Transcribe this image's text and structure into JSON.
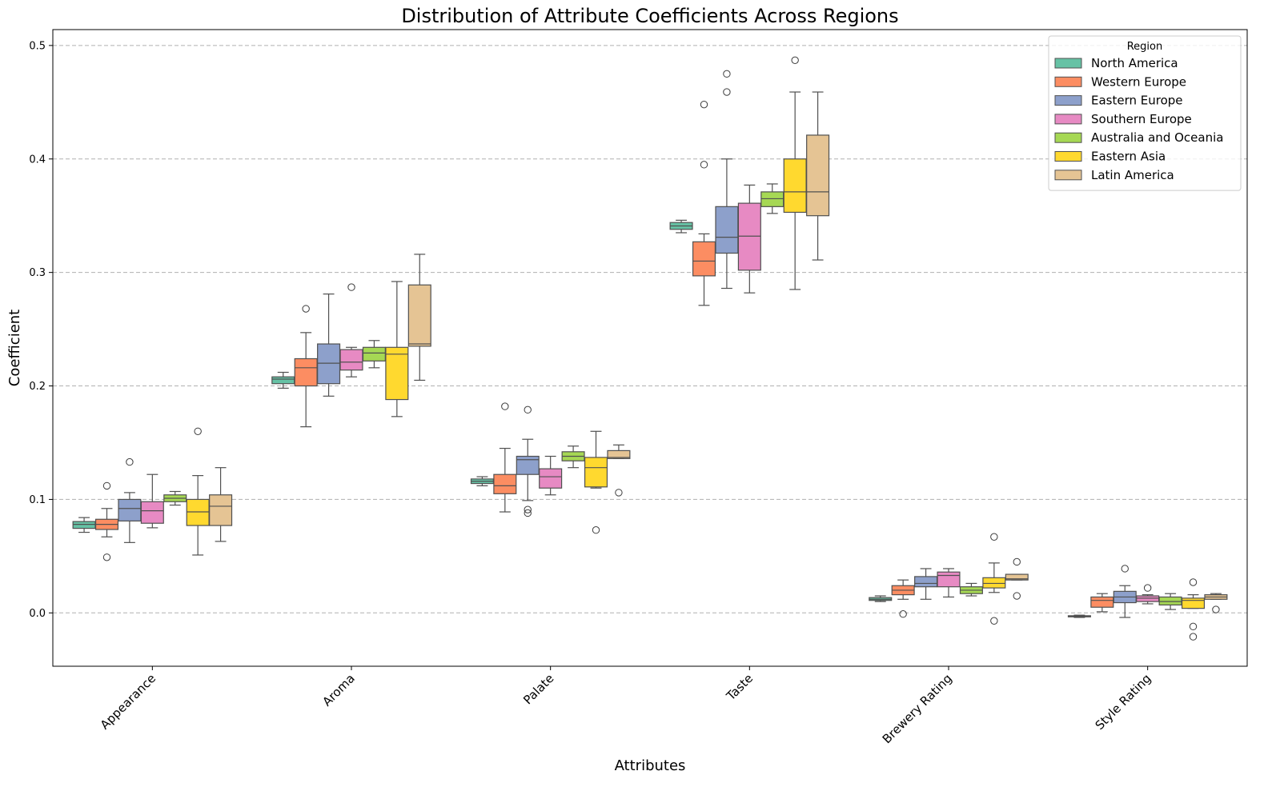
{
  "chart_data": {
    "type": "box",
    "title": "Distribution of Attribute Coefficients Across Regions",
    "xlabel": "Attributes",
    "ylabel": "Coefficient",
    "ylim": [
      -0.047,
      0.514
    ],
    "yticks": [
      0.0,
      0.1,
      0.2,
      0.3,
      0.4,
      0.5
    ],
    "ytick_labels": [
      "0.0",
      "0.1",
      "0.2",
      "0.3",
      "0.4",
      "0.5"
    ],
    "grid": "y-dashed",
    "legend": {
      "title": "Region",
      "placement": "top-right"
    },
    "categories": [
      "Appearance",
      "Aroma",
      "Palate",
      "Taste",
      "Brewery Rating",
      "Style Rating"
    ],
    "series": [
      {
        "name": "North America",
        "color": "#66c2a5",
        "boxes": [
          {
            "whislo": 0.071,
            "q1": 0.0745,
            "med": 0.078,
            "q3": 0.0805,
            "whishi": 0.084,
            "fliers": []
          },
          {
            "whislo": 0.198,
            "q1": 0.202,
            "med": 0.206,
            "q3": 0.208,
            "whishi": 0.212,
            "fliers": []
          },
          {
            "whislo": 0.112,
            "q1": 0.114,
            "med": 0.116,
            "q3": 0.118,
            "whishi": 0.12,
            "fliers": []
          },
          {
            "whislo": 0.335,
            "q1": 0.338,
            "med": 0.341,
            "q3": 0.344,
            "whishi": 0.346,
            "fliers": []
          },
          {
            "whislo": 0.01,
            "q1": 0.011,
            "med": 0.012,
            "q3": 0.0135,
            "whishi": 0.015,
            "fliers": []
          },
          {
            "whislo": -0.004,
            "q1": -0.0035,
            "med": -0.003,
            "q3": -0.0025,
            "whishi": -0.002,
            "fliers": []
          }
        ]
      },
      {
        "name": "Western Europe",
        "color": "#fc8d62",
        "boxes": [
          {
            "whislo": 0.067,
            "q1": 0.0735,
            "med": 0.078,
            "q3": 0.0825,
            "whishi": 0.092,
            "fliers": [
              0.112,
              0.049
            ]
          },
          {
            "whislo": 0.164,
            "q1": 0.2,
            "med": 0.216,
            "q3": 0.224,
            "whishi": 0.247,
            "fliers": [
              0.268
            ]
          },
          {
            "whislo": 0.089,
            "q1": 0.105,
            "med": 0.112,
            "q3": 0.122,
            "whishi": 0.145,
            "fliers": [
              0.182
            ]
          },
          {
            "whislo": 0.271,
            "q1": 0.297,
            "med": 0.31,
            "q3": 0.327,
            "whishi": 0.334,
            "fliers": [
              0.448,
              0.395
            ]
          },
          {
            "whislo": 0.012,
            "q1": 0.016,
            "med": 0.02,
            "q3": 0.024,
            "whishi": 0.029,
            "fliers": [
              -0.001
            ]
          },
          {
            "whislo": 0.001,
            "q1": 0.005,
            "med": 0.011,
            "q3": 0.014,
            "whishi": 0.017,
            "fliers": []
          }
        ]
      },
      {
        "name": "Eastern Europe",
        "color": "#8da0cb",
        "boxes": [
          {
            "whislo": 0.062,
            "q1": 0.081,
            "med": 0.092,
            "q3": 0.1,
            "whishi": 0.106,
            "fliers": [
              0.133
            ]
          },
          {
            "whislo": 0.191,
            "q1": 0.202,
            "med": 0.22,
            "q3": 0.237,
            "whishi": 0.281,
            "fliers": []
          },
          {
            "whislo": 0.099,
            "q1": 0.122,
            "med": 0.135,
            "q3": 0.138,
            "whishi": 0.153,
            "fliers": [
              0.179,
              0.091,
              0.088
            ]
          },
          {
            "whislo": 0.286,
            "q1": 0.317,
            "med": 0.331,
            "q3": 0.358,
            "whishi": 0.4,
            "fliers": [
              0.475,
              0.459
            ]
          },
          {
            "whislo": 0.012,
            "q1": 0.023,
            "med": 0.026,
            "q3": 0.032,
            "whishi": 0.039,
            "fliers": []
          },
          {
            "whislo": -0.004,
            "q1": 0.009,
            "med": 0.014,
            "q3": 0.019,
            "whishi": 0.024,
            "fliers": [
              0.039
            ]
          }
        ]
      },
      {
        "name": "Southern Europe",
        "color": "#e78ac3",
        "boxes": [
          {
            "whislo": 0.075,
            "q1": 0.079,
            "med": 0.09,
            "q3": 0.098,
            "whishi": 0.122,
            "fliers": []
          },
          {
            "whislo": 0.208,
            "q1": 0.214,
            "med": 0.221,
            "q3": 0.232,
            "whishi": 0.234,
            "fliers": [
              0.287
            ]
          },
          {
            "whislo": 0.104,
            "q1": 0.11,
            "med": 0.12,
            "q3": 0.127,
            "whishi": 0.138,
            "fliers": []
          },
          {
            "whislo": 0.282,
            "q1": 0.302,
            "med": 0.332,
            "q3": 0.361,
            "whishi": 0.377,
            "fliers": []
          },
          {
            "whislo": 0.014,
            "q1": 0.023,
            "med": 0.033,
            "q3": 0.036,
            "whishi": 0.039,
            "fliers": []
          },
          {
            "whislo": 0.008,
            "q1": 0.01,
            "med": 0.013,
            "q3": 0.015,
            "whishi": 0.016,
            "fliers": [
              0.022
            ]
          }
        ]
      },
      {
        "name": "Australia and Oceania",
        "color": "#a6d854",
        "boxes": [
          {
            "whislo": 0.095,
            "q1": 0.098,
            "med": 0.101,
            "q3": 0.104,
            "whishi": 0.107,
            "fliers": []
          },
          {
            "whislo": 0.216,
            "q1": 0.222,
            "med": 0.229,
            "q3": 0.234,
            "whishi": 0.24,
            "fliers": []
          },
          {
            "whislo": 0.128,
            "q1": 0.134,
            "med": 0.138,
            "q3": 0.142,
            "whishi": 0.147,
            "fliers": []
          },
          {
            "whislo": 0.352,
            "q1": 0.358,
            "med": 0.365,
            "q3": 0.371,
            "whishi": 0.378,
            "fliers": []
          },
          {
            "whislo": 0.015,
            "q1": 0.017,
            "med": 0.02,
            "q3": 0.023,
            "whishi": 0.026,
            "fliers": []
          },
          {
            "whislo": 0.003,
            "q1": 0.007,
            "med": 0.01,
            "q3": 0.014,
            "whishi": 0.017,
            "fliers": []
          }
        ]
      },
      {
        "name": "Eastern Asia",
        "color": "#ffd92f",
        "boxes": [
          {
            "whislo": 0.051,
            "q1": 0.077,
            "med": 0.089,
            "q3": 0.1,
            "whishi": 0.121,
            "fliers": [
              0.16
            ]
          },
          {
            "whislo": 0.173,
            "q1": 0.188,
            "med": 0.228,
            "q3": 0.234,
            "whishi": 0.292,
            "fliers": []
          },
          {
            "whislo": 0.11,
            "q1": 0.111,
            "med": 0.128,
            "q3": 0.137,
            "whishi": 0.16,
            "fliers": [
              0.073
            ]
          },
          {
            "whislo": 0.285,
            "q1": 0.353,
            "med": 0.371,
            "q3": 0.4,
            "whishi": 0.459,
            "fliers": [
              0.487
            ]
          },
          {
            "whislo": 0.018,
            "q1": 0.022,
            "med": 0.026,
            "q3": 0.031,
            "whishi": 0.044,
            "fliers": [
              0.067,
              -0.007
            ]
          },
          {
            "whislo": 0.004,
            "q1": 0.004,
            "med": 0.011,
            "q3": 0.013,
            "whishi": 0.016,
            "fliers": [
              0.027,
              -0.012,
              -0.021
            ]
          }
        ]
      },
      {
        "name": "Latin America",
        "color": "#e5c494",
        "boxes": [
          {
            "whislo": 0.063,
            "q1": 0.077,
            "med": 0.094,
            "q3": 0.104,
            "whishi": 0.128,
            "fliers": []
          },
          {
            "whislo": 0.205,
            "q1": 0.235,
            "med": 0.237,
            "q3": 0.289,
            "whishi": 0.316,
            "fliers": []
          },
          {
            "whislo": 0.136,
            "q1": 0.136,
            "med": 0.137,
            "q3": 0.143,
            "whishi": 0.148,
            "fliers": [
              0.106
            ]
          },
          {
            "whislo": 0.311,
            "q1": 0.35,
            "med": 0.371,
            "q3": 0.421,
            "whishi": 0.459,
            "fliers": []
          },
          {
            "whislo": 0.029,
            "q1": 0.029,
            "med": 0.03,
            "q3": 0.034,
            "whishi": 0.034,
            "fliers": [
              0.045,
              0.015
            ]
          },
          {
            "whislo": 0.012,
            "q1": 0.012,
            "med": 0.014,
            "q3": 0.016,
            "whishi": 0.017,
            "fliers": [
              0.003
            ]
          }
        ]
      }
    ]
  }
}
